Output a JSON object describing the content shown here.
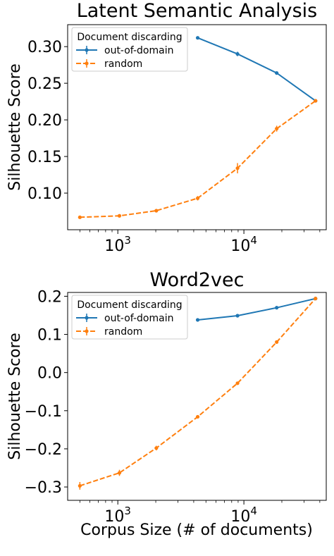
{
  "figure": {
    "xlabel": "Corpus Size (# of documents)"
  },
  "chart_data": [
    {
      "type": "line",
      "title": "Latent Semantic Analysis",
      "ylabel": "Silhouette Score",
      "xlabel": "",
      "xscale": "log",
      "xlim": [
        400,
        45000
      ],
      "ylim": [
        0.05,
        0.33
      ],
      "yticks": [
        0.1,
        0.15,
        0.2,
        0.25,
        0.3
      ],
      "ytick_labels": [
        "0.10",
        "0.15",
        "0.20",
        "0.25",
        "0.30"
      ],
      "xticks": [
        1000,
        10000
      ],
      "xtick_labels": [
        {
          "base": "10",
          "exp": "3"
        },
        {
          "base": "10",
          "exp": "4"
        }
      ],
      "grid": false,
      "legend": {
        "title": "Document discarding",
        "placement": "top-left"
      },
      "series": [
        {
          "name": "out-of-domain",
          "color": "#1f77b4",
          "style": "solid",
          "x": [
            4300,
            8900,
            18200,
            37000
          ],
          "y": [
            0.312,
            0.29,
            0.264,
            0.226
          ],
          "err": [
            0.001,
            0.003,
            0.002,
            0.001
          ]
        },
        {
          "name": "random",
          "color": "#ff7f0e",
          "style": "dashed",
          "x": [
            500,
            1030,
            2020,
            4300,
            8900,
            18200,
            37000
          ],
          "y": [
            0.067,
            0.069,
            0.076,
            0.093,
            0.134,
            0.188,
            0.226
          ],
          "err": [
            0.002,
            0.002,
            0.002,
            0.003,
            0.007,
            0.004,
            0.002
          ]
        }
      ]
    },
    {
      "type": "line",
      "title": "Word2vec",
      "ylabel": "Silhouette Score",
      "xlabel": "Corpus Size (# of documents)",
      "xscale": "log",
      "xlim": [
        400,
        45000
      ],
      "ylim": [
        -0.335,
        0.21
      ],
      "yticks": [
        -0.3,
        -0.2,
        -0.1,
        0.0,
        0.1,
        0.2
      ],
      "ytick_labels": [
        "−0.3",
        "−0.2",
        "−0.1",
        "0.0",
        "0.1",
        "0.2"
      ],
      "xticks": [
        1000,
        10000
      ],
      "xtick_labels": [
        {
          "base": "10",
          "exp": "3"
        },
        {
          "base": "10",
          "exp": "4"
        }
      ],
      "grid": false,
      "legend": {
        "title": "Document discarding",
        "placement": "top-left"
      },
      "series": [
        {
          "name": "out-of-domain",
          "color": "#1f77b4",
          "style": "solid",
          "x": [
            4300,
            8900,
            18200,
            37000
          ],
          "y": [
            0.138,
            0.149,
            0.17,
            0.194
          ],
          "err": [
            0.002,
            0.002,
            0.002,
            0.002
          ]
        },
        {
          "name": "random",
          "color": "#ff7f0e",
          "style": "dashed",
          "x": [
            500,
            1030,
            2020,
            4300,
            8900,
            18200,
            37000
          ],
          "y": [
            -0.297,
            -0.263,
            -0.198,
            -0.116,
            -0.028,
            0.08,
            0.194
          ],
          "err": [
            0.01,
            0.008,
            0.006,
            0.004,
            0.004,
            0.003,
            0.002
          ]
        }
      ]
    }
  ]
}
